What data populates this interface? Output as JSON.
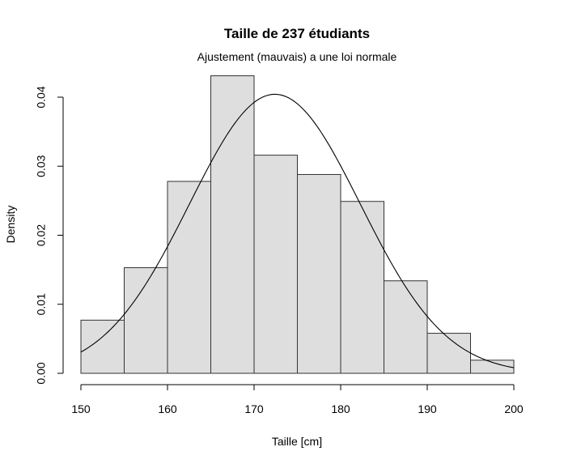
{
  "chart_data": {
    "type": "bar",
    "title": "Taille de 237 étudiants",
    "subtitle": "Ajustement (mauvais) a une loi normale",
    "xlabel": "Taille [cm]",
    "ylabel": "Density",
    "xlim": [
      150,
      200
    ],
    "ylim": [
      0,
      0.04
    ],
    "x_ticks": [
      150,
      160,
      170,
      180,
      190,
      200
    ],
    "x_tick_labels": [
      "150",
      "160",
      "170",
      "180",
      "190",
      "200"
    ],
    "y_ticks": [
      0.0,
      0.01,
      0.02,
      0.03,
      0.04
    ],
    "y_tick_labels": [
      "0.00",
      "0.01",
      "0.02",
      "0.03",
      "0.04"
    ],
    "bins": [
      {
        "from": 150,
        "to": 155,
        "density": 0.0077
      },
      {
        "from": 155,
        "to": 160,
        "density": 0.0153
      },
      {
        "from": 160,
        "to": 165,
        "density": 0.0278
      },
      {
        "from": 165,
        "to": 170,
        "density": 0.0431
      },
      {
        "from": 170,
        "to": 175,
        "density": 0.0316
      },
      {
        "from": 175,
        "to": 180,
        "density": 0.0288
      },
      {
        "from": 180,
        "to": 185,
        "density": 0.0249
      },
      {
        "from": 185,
        "to": 190,
        "density": 0.0134
      },
      {
        "from": 190,
        "to": 195,
        "density": 0.0058
      },
      {
        "from": 195,
        "to": 200,
        "density": 0.0019
      }
    ],
    "normal_curve": {
      "mean": 172.4,
      "sd": 9.87
    },
    "bar_color": "#dedede",
    "grid": false,
    "legend": "none"
  }
}
